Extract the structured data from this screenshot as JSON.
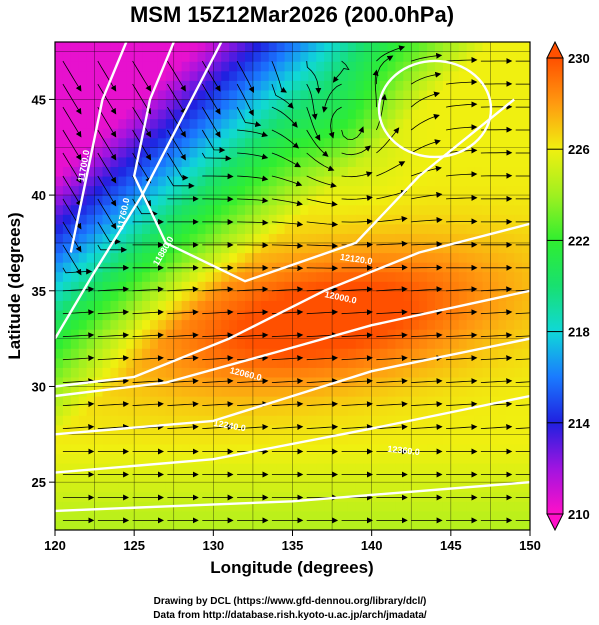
{
  "chart_data": {
    "type": "heatmap",
    "title": "MSM 15Z12Mar2026 (200.0hPa)",
    "xlabel": "Longitude (degrees)",
    "ylabel": "Latitude  (degrees)",
    "xlim": [
      120,
      150
    ],
    "ylim": [
      22.5,
      48
    ],
    "x_ticks": [
      "120",
      "125",
      "130",
      "135",
      "140",
      "145",
      "150"
    ],
    "y_ticks": [
      "25",
      "30",
      "35",
      "40",
      "45"
    ],
    "colorbar": {
      "min": 210,
      "max": 230,
      "ticks": [
        "210",
        "214",
        "218",
        "222",
        "226",
        "230"
      ]
    },
    "grid": true,
    "contour_labels": [
      "11700.0",
      "11760.0",
      "11880.0",
      "12000.0",
      "12060.0",
      "12120.0",
      "12240.0",
      "12360.0"
    ],
    "credits": [
      "Drawing by DCL (https://www.gfd-dennou.org/library/dcl/)",
      "Data from http://database.rish.kyoto-u.ac.jp/arch/jmadata/"
    ],
    "colors": {
      "low": "#ff10c8",
      "mid": "#30ee30",
      "high": "#ff5000",
      "contour": "#ffffff",
      "vector": "#000000"
    }
  }
}
